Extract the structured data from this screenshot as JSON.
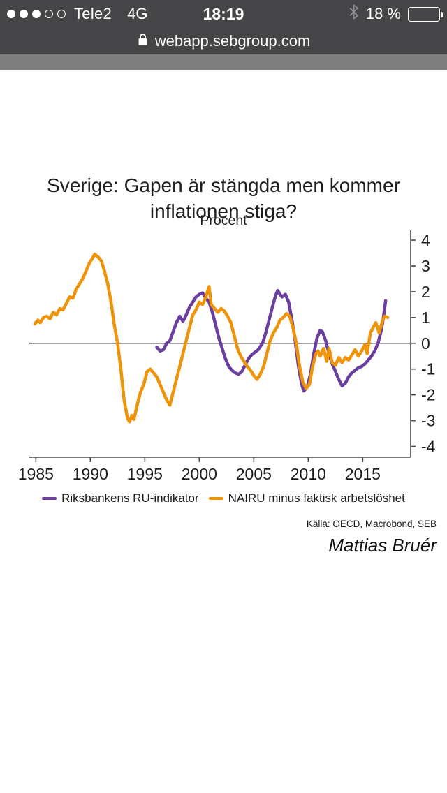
{
  "status_bar": {
    "carrier": "Tele2",
    "network": "4G",
    "time": "18:19",
    "battery_percent": "18 %",
    "signal_filled_dots": 3,
    "signal_total_dots": 5
  },
  "address_bar": {
    "url": "webapp.sebgroup.com"
  },
  "header": {
    "title_lines": [
      "Sverige: Gapen är stängda men kommer",
      "inflationen stiga?"
    ],
    "subtitle": "Procent"
  },
  "footer": {
    "source": "Källa: OECD, Macrobond, SEB",
    "author": "Mattias Bruér"
  },
  "colors": {
    "chrome_bg": "#454547",
    "page_header_bar": "#7f7f7f",
    "axis": "#4a4a4a",
    "text": "#1d1d1b",
    "purple_series": "#6B3FA0",
    "orange_series": "#EF9309",
    "battery_low_yellow": "#f2c012"
  },
  "chart_data": {
    "type": "line",
    "title": "Sverige: Gapen är stängda men kommer inflationen stiga?",
    "subtitle": "Procent",
    "xlabel": "",
    "ylabel": "",
    "x_ticks": [
      1985,
      1990,
      1995,
      2000,
      2005,
      2010,
      2015
    ],
    "y_ticks": [
      4,
      3,
      2,
      1,
      0,
      -1,
      -2,
      -3,
      -4
    ],
    "xlim": [
      1984.4,
      2019.4
    ],
    "ylim": [
      -4.42,
      4.38
    ],
    "y_axis_side": "right",
    "zero_line": true,
    "grid": false,
    "legend_position": "bottom",
    "axis_color": "#4a4a4a",
    "series": [
      {
        "name": "Riksbankens RU-indikator",
        "color": "#6B3FA0",
        "points": [
          [
            1996.1,
            -0.15
          ],
          [
            1996.4,
            -0.3
          ],
          [
            1996.7,
            -0.25
          ],
          [
            1997.0,
            0.0
          ],
          [
            1997.3,
            0.1
          ],
          [
            1997.6,
            0.45
          ],
          [
            1997.9,
            0.8
          ],
          [
            1998.2,
            1.05
          ],
          [
            1998.5,
            0.85
          ],
          [
            1998.8,
            1.1
          ],
          [
            1999.1,
            1.4
          ],
          [
            1999.4,
            1.6
          ],
          [
            1999.7,
            1.8
          ],
          [
            2000.0,
            1.9
          ],
          [
            2000.3,
            1.95
          ],
          [
            2000.6,
            1.75
          ],
          [
            2000.9,
            1.6
          ],
          [
            2001.2,
            1.2
          ],
          [
            2001.5,
            0.7
          ],
          [
            2001.8,
            0.2
          ],
          [
            2002.1,
            -0.2
          ],
          [
            2002.4,
            -0.6
          ],
          [
            2002.7,
            -0.9
          ],
          [
            2003.0,
            -1.05
          ],
          [
            2003.3,
            -1.15
          ],
          [
            2003.6,
            -1.2
          ],
          [
            2003.9,
            -1.1
          ],
          [
            2004.2,
            -0.85
          ],
          [
            2004.5,
            -0.6
          ],
          [
            2004.8,
            -0.45
          ],
          [
            2005.1,
            -0.35
          ],
          [
            2005.4,
            -0.25
          ],
          [
            2005.8,
            0.0
          ],
          [
            2006.1,
            0.4
          ],
          [
            2006.4,
            0.9
          ],
          [
            2006.7,
            1.4
          ],
          [
            2007.0,
            1.85
          ],
          [
            2007.2,
            2.05
          ],
          [
            2007.4,
            1.9
          ],
          [
            2007.6,
            1.8
          ],
          [
            2007.9,
            1.9
          ],
          [
            2008.2,
            1.6
          ],
          [
            2008.5,
            0.9
          ],
          [
            2008.8,
            0.1
          ],
          [
            2009.1,
            -0.9
          ],
          [
            2009.4,
            -1.6
          ],
          [
            2009.6,
            -1.85
          ],
          [
            2009.9,
            -1.7
          ],
          [
            2010.2,
            -1.2
          ],
          [
            2010.5,
            -0.4
          ],
          [
            2010.8,
            0.2
          ],
          [
            2011.1,
            0.5
          ],
          [
            2011.3,
            0.45
          ],
          [
            2011.6,
            0.1
          ],
          [
            2011.9,
            -0.4
          ],
          [
            2012.2,
            -0.8
          ],
          [
            2012.5,
            -1.1
          ],
          [
            2012.8,
            -1.4
          ],
          [
            2013.1,
            -1.65
          ],
          [
            2013.4,
            -1.55
          ],
          [
            2013.7,
            -1.3
          ],
          [
            2014.0,
            -1.15
          ],
          [
            2014.3,
            -1.05
          ],
          [
            2014.6,
            -0.95
          ],
          [
            2014.9,
            -0.9
          ],
          [
            2015.2,
            -0.8
          ],
          [
            2015.5,
            -0.65
          ],
          [
            2015.8,
            -0.5
          ],
          [
            2016.1,
            -0.3
          ],
          [
            2016.4,
            0.0
          ],
          [
            2016.7,
            0.5
          ],
          [
            2016.9,
            1.0
          ],
          [
            2017.1,
            1.65
          ]
        ]
      },
      {
        "name": "NAIRU minus faktisk arbetslöshet",
        "color": "#EF9309",
        "points": [
          [
            1984.9,
            0.75
          ],
          [
            1985.2,
            0.9
          ],
          [
            1985.4,
            0.8
          ],
          [
            1985.7,
            1.0
          ],
          [
            1986.0,
            1.05
          ],
          [
            1986.3,
            0.95
          ],
          [
            1986.6,
            1.2
          ],
          [
            1986.9,
            1.1
          ],
          [
            1987.2,
            1.35
          ],
          [
            1987.5,
            1.3
          ],
          [
            1987.8,
            1.55
          ],
          [
            1988.1,
            1.8
          ],
          [
            1988.4,
            1.75
          ],
          [
            1988.7,
            2.1
          ],
          [
            1989.0,
            2.3
          ],
          [
            1989.3,
            2.5
          ],
          [
            1989.6,
            2.8
          ],
          [
            1989.9,
            3.1
          ],
          [
            1990.2,
            3.3
          ],
          [
            1990.4,
            3.45
          ],
          [
            1990.7,
            3.35
          ],
          [
            1991.0,
            3.2
          ],
          [
            1991.3,
            2.8
          ],
          [
            1991.6,
            2.3
          ],
          [
            1991.9,
            1.6
          ],
          [
            1992.2,
            0.7
          ],
          [
            1992.5,
            0.0
          ],
          [
            1992.8,
            -1.0
          ],
          [
            1993.1,
            -2.2
          ],
          [
            1993.4,
            -2.9
          ],
          [
            1993.6,
            -3.05
          ],
          [
            1993.8,
            -2.8
          ],
          [
            1994.0,
            -2.95
          ],
          [
            1994.3,
            -2.4
          ],
          [
            1994.6,
            -1.9
          ],
          [
            1994.9,
            -1.6
          ],
          [
            1995.2,
            -1.1
          ],
          [
            1995.5,
            -1.0
          ],
          [
            1995.8,
            -1.15
          ],
          [
            1996.1,
            -1.3
          ],
          [
            1996.4,
            -1.6
          ],
          [
            1996.7,
            -1.9
          ],
          [
            1997.0,
            -2.2
          ],
          [
            1997.3,
            -2.4
          ],
          [
            1997.6,
            -1.9
          ],
          [
            1997.9,
            -1.4
          ],
          [
            1998.2,
            -0.9
          ],
          [
            1998.5,
            -0.4
          ],
          [
            1998.8,
            0.1
          ],
          [
            1999.1,
            0.6
          ],
          [
            1999.4,
            1.1
          ],
          [
            1999.7,
            1.3
          ],
          [
            2000.0,
            1.6
          ],
          [
            2000.3,
            1.5
          ],
          [
            2000.6,
            1.8
          ],
          [
            2000.9,
            2.2
          ],
          [
            2001.1,
            1.5
          ],
          [
            2001.4,
            1.35
          ],
          [
            2001.7,
            1.2
          ],
          [
            2002.0,
            1.35
          ],
          [
            2002.3,
            1.25
          ],
          [
            2002.6,
            1.05
          ],
          [
            2002.9,
            0.8
          ],
          [
            2003.2,
            0.3
          ],
          [
            2003.5,
            -0.2
          ],
          [
            2003.8,
            -0.5
          ],
          [
            2004.1,
            -0.7
          ],
          [
            2004.4,
            -0.9
          ],
          [
            2004.7,
            -1.05
          ],
          [
            2005.0,
            -1.25
          ],
          [
            2005.3,
            -1.4
          ],
          [
            2005.6,
            -1.2
          ],
          [
            2005.9,
            -0.9
          ],
          [
            2006.2,
            -0.4
          ],
          [
            2006.5,
            0.1
          ],
          [
            2006.8,
            0.4
          ],
          [
            2007.1,
            0.6
          ],
          [
            2007.4,
            0.9
          ],
          [
            2007.7,
            1.0
          ],
          [
            2008.0,
            1.15
          ],
          [
            2008.3,
            1.05
          ],
          [
            2008.6,
            0.6
          ],
          [
            2008.9,
            0.0
          ],
          [
            2009.2,
            -0.9
          ],
          [
            2009.5,
            -1.5
          ],
          [
            2009.8,
            -1.75
          ],
          [
            2010.1,
            -1.6
          ],
          [
            2010.4,
            -0.9
          ],
          [
            2010.7,
            -0.4
          ],
          [
            2010.9,
            -0.3
          ],
          [
            2011.1,
            -0.5
          ],
          [
            2011.4,
            -0.2
          ],
          [
            2011.7,
            -0.7
          ],
          [
            2011.9,
            -0.2
          ],
          [
            2012.2,
            -0.75
          ],
          [
            2012.5,
            -0.85
          ],
          [
            2012.8,
            -0.55
          ],
          [
            2013.1,
            -0.75
          ],
          [
            2013.4,
            -0.55
          ],
          [
            2013.7,
            -0.65
          ],
          [
            2014.0,
            -0.45
          ],
          [
            2014.3,
            -0.25
          ],
          [
            2014.6,
            -0.5
          ],
          [
            2014.9,
            -0.3
          ],
          [
            2015.2,
            -0.05
          ],
          [
            2015.4,
            -0.4
          ],
          [
            2015.7,
            0.4
          ],
          [
            2016.0,
            0.65
          ],
          [
            2016.2,
            0.8
          ],
          [
            2016.5,
            0.4
          ],
          [
            2016.8,
            0.85
          ],
          [
            2017.0,
            1.05
          ],
          [
            2017.3,
            1.0
          ]
        ]
      }
    ],
    "source": "Källa: OECD, Macrobond, SEB",
    "author": "Mattias Bruér"
  }
}
